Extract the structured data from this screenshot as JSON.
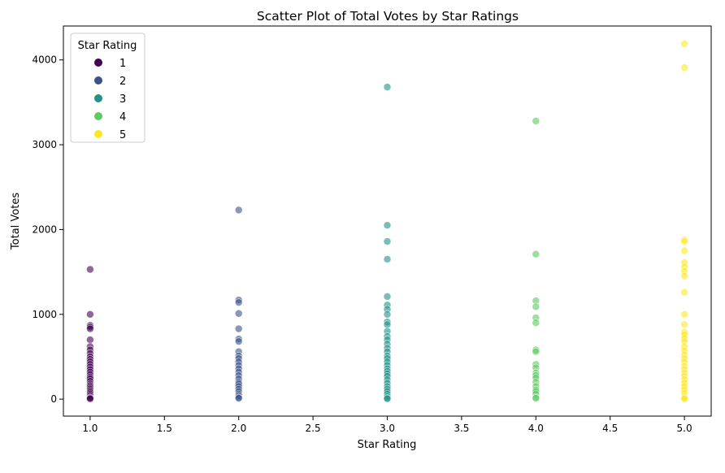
{
  "chart_data": {
    "type": "scatter",
    "title": "Scatter Plot of Total Votes by Star Ratings",
    "xlabel": "Star Rating",
    "ylabel": "Total Votes",
    "xlim": [
      0.82,
      5.18
    ],
    "ylim": [
      -200,
      4400
    ],
    "xticks": [
      "1.0",
      "1.5",
      "2.0",
      "2.5",
      "3.0",
      "3.5",
      "4.0",
      "4.5",
      "5.0"
    ],
    "yticks": [
      "0",
      "1000",
      "2000",
      "3000",
      "4000"
    ],
    "grid": false,
    "legend": {
      "title": "Star Rating",
      "position": "top-left"
    },
    "series": [
      {
        "name": "1",
        "color": "#440154",
        "x": 1.0,
        "values": [
          1530,
          1000,
          870,
          850,
          830,
          700,
          620,
          580,
          540,
          500,
          470,
          440,
          410,
          380,
          350,
          320,
          290,
          260,
          240,
          210,
          180,
          160,
          140,
          120,
          100,
          80,
          60,
          40,
          20,
          10,
          5
        ]
      },
      {
        "name": "2",
        "color": "#3b528b",
        "x": 2.0,
        "values": [
          2230,
          1170,
          1140,
          1010,
          830,
          710,
          680,
          560,
          510,
          480,
          440,
          400,
          360,
          320,
          280,
          240,
          200,
          180,
          150,
          120,
          90,
          60,
          40,
          20,
          10
        ]
      },
      {
        "name": "3",
        "color": "#21918c",
        "x": 3.0,
        "values": [
          3680,
          2050,
          1860,
          1650,
          1210,
          1110,
          1060,
          1000,
          910,
          880,
          800,
          740,
          700,
          650,
          600,
          560,
          510,
          480,
          440,
          400,
          360,
          330,
          300,
          270,
          230,
          190,
          150,
          120,
          90,
          60,
          30,
          10,
          5
        ]
      },
      {
        "name": "4",
        "color": "#5ec962",
        "x": 4.0,
        "values": [
          3280,
          1710,
          1160,
          1090,
          960,
          900,
          580,
          560,
          410,
          370,
          310,
          280,
          250,
          200,
          150,
          110,
          90,
          60,
          20,
          10
        ]
      },
      {
        "name": "5",
        "color": "#fde725",
        "x": 5.0,
        "values": [
          4190,
          3910,
          1880,
          1860,
          1750,
          1610,
          1560,
          1510,
          1450,
          1260,
          1000,
          880,
          790,
          760,
          720,
          680,
          620,
          570,
          520,
          480,
          440,
          390,
          350,
          310,
          270,
          230,
          190,
          150,
          110,
          70,
          30,
          10,
          5
        ]
      }
    ]
  }
}
